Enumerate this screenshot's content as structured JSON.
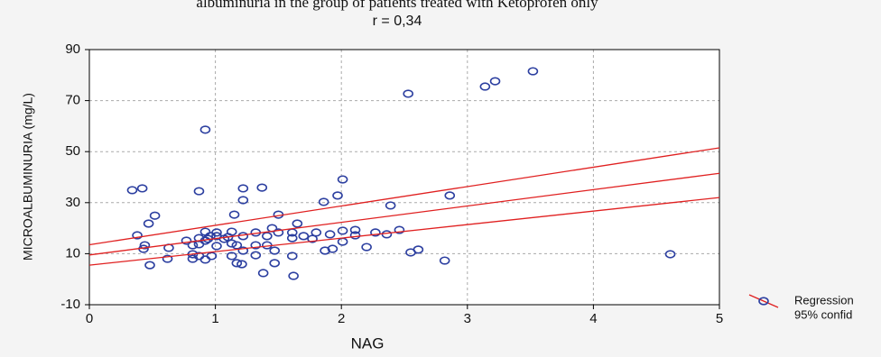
{
  "chart_data": {
    "type": "scatter",
    "title": "albuminuria in the group of patients treated with Ketoprofen only",
    "subtitle": "r = 0,34",
    "x_label": "NAG",
    "y_label": "MICROALBUMINURIA (mg/L)",
    "xlim": [
      0,
      5
    ],
    "xticks": [
      0,
      1,
      2,
      3,
      4,
      5
    ],
    "ylim": [
      -10,
      90
    ],
    "yticks": [
      -10,
      10,
      30,
      50,
      70,
      90
    ],
    "grid": true,
    "points": {
      "color": "#2c3fa0",
      "x": [
        0.34,
        0.42,
        0.92,
        0.87,
        1.22,
        1.37,
        1.22,
        1.86,
        1.97,
        2.01,
        2.53,
        3.14,
        3.22,
        3.52,
        2.86,
        2.39,
        4.61,
        2.82,
        2.55,
        2.61,
        2.2,
        2.36,
        2.46,
        2.27,
        2.11,
        2.11,
        2.01,
        2.01,
        1.91,
        1.93,
        1.87,
        1.77,
        1.8,
        1.7,
        1.65,
        1.61,
        1.61,
        1.61,
        1.62,
        1.5,
        1.5,
        1.45,
        1.47,
        1.47,
        1.38,
        1.41,
        1.41,
        1.32,
        1.32,
        1.32,
        1.21,
        1.17,
        1.17,
        1.22,
        1.22,
        1.13,
        1.13,
        1.13,
        1.15,
        1.1,
        1.01,
        1.01,
        1.01,
        0.96,
        0.97,
        0.92,
        0.92,
        0.92,
        0.87,
        0.87,
        0.82,
        0.82,
        0.82,
        0.77,
        0.62,
        0.63,
        0.44,
        0.43,
        0.38,
        0.47,
        0.52,
        0.48,
        0.94,
        1.07,
        0.87
      ],
      "values": [
        34.9,
        35.6,
        58.6,
        34.5,
        35.6,
        35.9,
        31.0,
        30.3,
        32.8,
        39.1,
        72.7,
        75.5,
        77.6,
        81.5,
        32.8,
        28.9,
        9.8,
        7.3,
        10.5,
        11.6,
        12.6,
        17.6,
        19.3,
        18.3,
        19.3,
        17.2,
        19.0,
        14.7,
        17.6,
        11.9,
        11.2,
        15.8,
        18.3,
        16.9,
        21.8,
        18.3,
        16.1,
        9.1,
        1.3,
        25.3,
        18.3,
        20.0,
        11.2,
        6.3,
        2.4,
        13.3,
        16.9,
        18.3,
        13.3,
        9.4,
        5.9,
        6.3,
        13.3,
        16.9,
        11.2,
        14.0,
        18.6,
        9.1,
        25.3,
        16.5,
        16.9,
        13.0,
        18.3,
        16.9,
        9.1,
        15.1,
        18.6,
        7.7,
        13.7,
        9.1,
        8.0,
        13.3,
        9.8,
        15.1,
        8.0,
        12.3,
        13.3,
        11.9,
        17.2,
        21.8,
        24.9,
        5.5,
        15.8,
        15.8,
        16.1
      ]
    },
    "regression": {
      "name": "Regression",
      "color": "#e02020",
      "x": [
        0,
        5
      ],
      "values": [
        9.5,
        41.5
      ]
    },
    "confidence": {
      "name": "95% confid",
      "color": "#e02020",
      "x": [
        0,
        5
      ],
      "upper": [
        13.5,
        51.5
      ],
      "lower": [
        5.5,
        32
      ]
    }
  }
}
